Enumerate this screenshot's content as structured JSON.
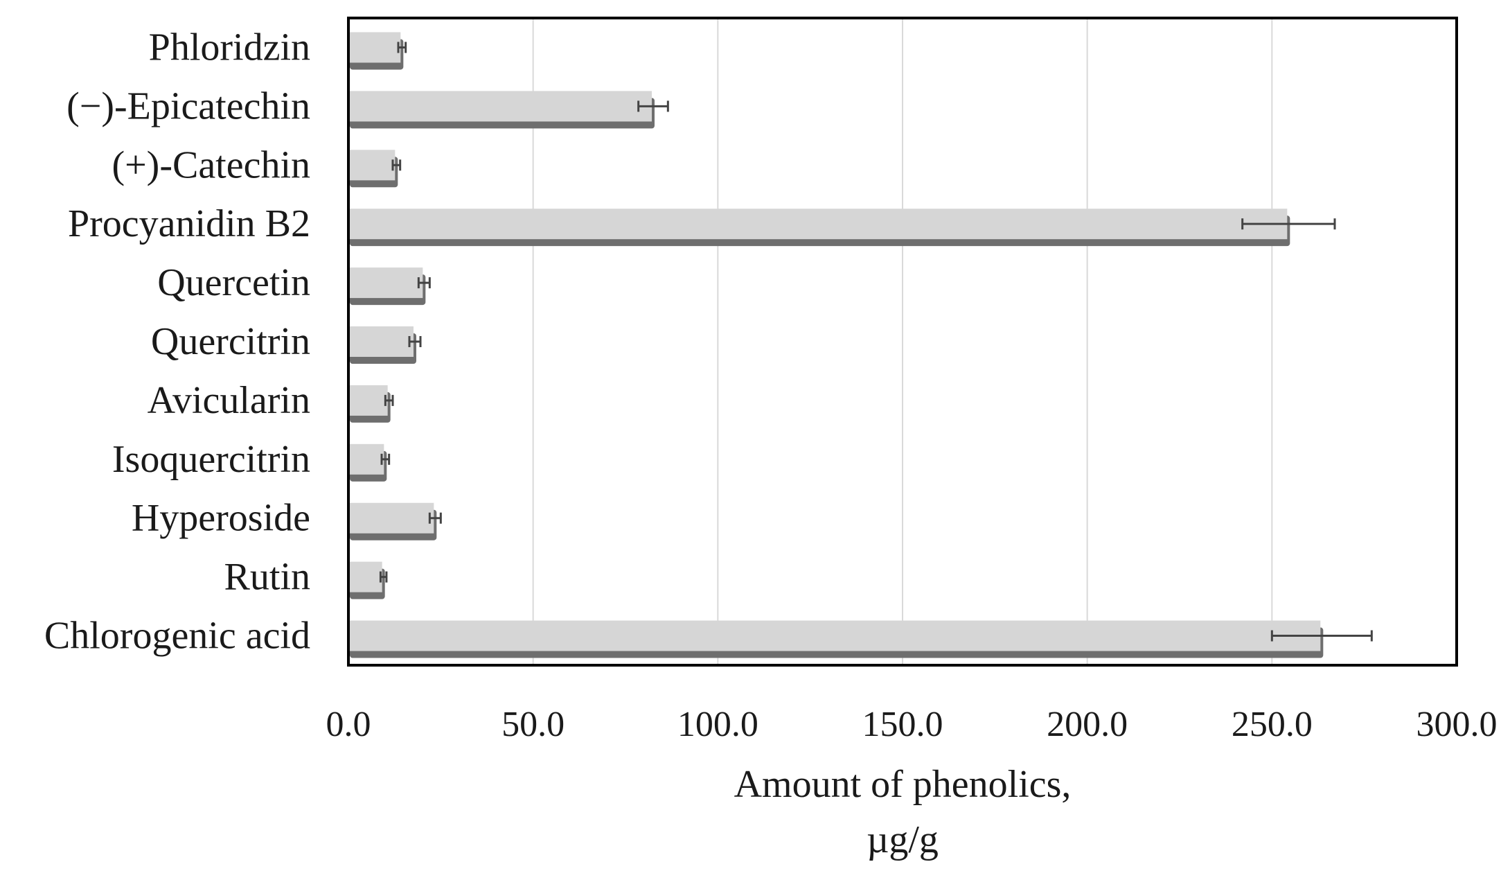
{
  "chart_data": {
    "type": "bar",
    "orientation": "horizontal",
    "categories": [
      "Phloridzin",
      "(−)-Epicatechin",
      "(+)-Catechin",
      "Procyanidin B2",
      "Quercetin",
      "Quercitrin",
      "Avicularin",
      "Isoquercitrin",
      "Hyperoside",
      "Rutin",
      "Chlorogenic acid"
    ],
    "values": [
      14.5,
      82.5,
      13.0,
      254.5,
      20.5,
      18.0,
      11.0,
      10.0,
      23.5,
      9.5,
      263.5
    ],
    "errors": [
      1.0,
      4.0,
      1.0,
      12.5,
      1.5,
      1.5,
      1.0,
      1.0,
      1.5,
      0.8,
      13.5
    ],
    "xlabel_line1": "Amount  of phenolics,",
    "xlabel_line2": "µg/g",
    "ylabel": "",
    "xlim": [
      0,
      300
    ],
    "xticks": [
      "0.0",
      "50.0",
      "100.0",
      "150.0",
      "200.0",
      "250.0",
      "300.0"
    ],
    "grid": "vertical",
    "legend": "none",
    "colors": {
      "bar_fill": "#d6d6d6",
      "bar_shadow": "#6e6e6e",
      "gridline": "#d9d9d9",
      "axis": "#000000",
      "error_bar": "#444444"
    }
  }
}
